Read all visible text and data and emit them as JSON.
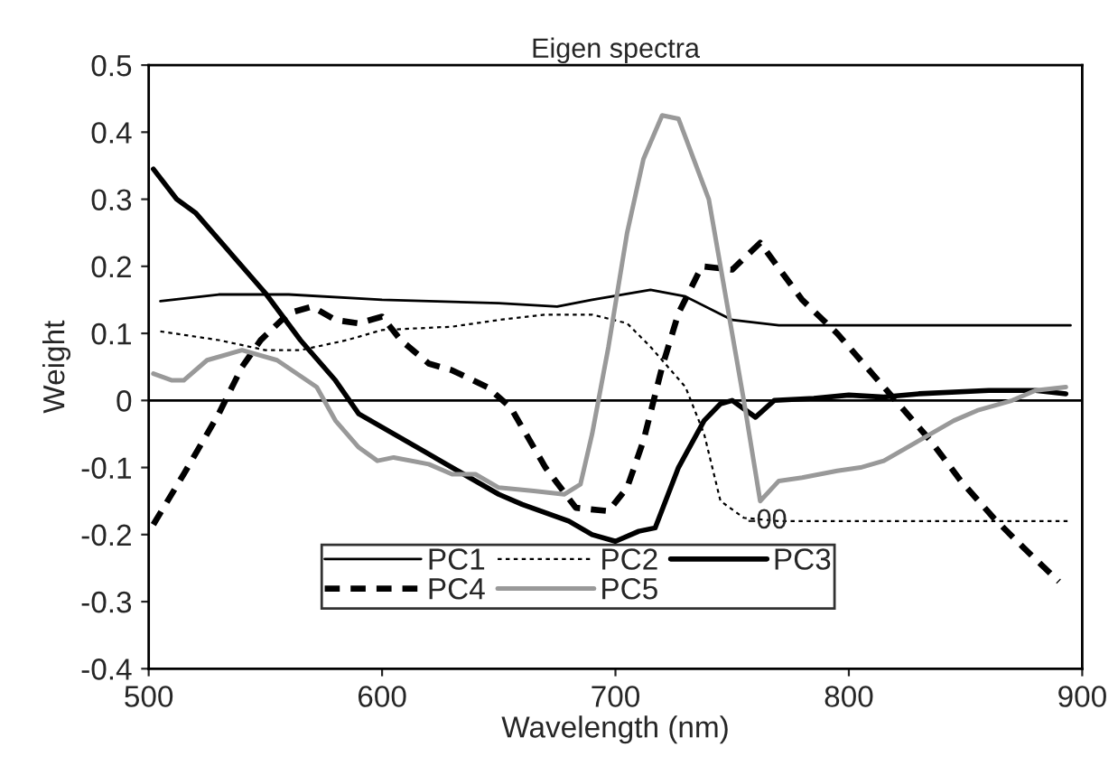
{
  "chart_data": {
    "type": "line",
    "title": "Eigen spectra",
    "xlabel": "Wavelength (nm)",
    "ylabel": "Weight",
    "xlim": [
      500,
      900
    ],
    "xticks": [
      500,
      600,
      700,
      800,
      900
    ],
    "ylim": [
      -0.4,
      0.5
    ],
    "yticks": [
      -0.4,
      -0.3,
      -0.2,
      -0.1,
      0,
      0.1,
      0.2,
      0.3,
      0.4,
      0.5
    ],
    "grid": false,
    "legend": "bottom",
    "marker": "none",
    "ref_lines": [
      {
        "axis": "y",
        "value": 0,
        "color": "#000000",
        "line_style": "solid"
      }
    ],
    "annotations": [
      {
        "text": "-00",
        "x": 765,
        "y": -0.18
      }
    ],
    "series": [
      {
        "name": "PC1",
        "color": "#000000",
        "line_style": "solid",
        "x": [
          505,
          530,
          560,
          600,
          650,
          675,
          690,
          715,
          730,
          750,
          770,
          895
        ],
        "values": [
          0.148,
          0.158,
          0.158,
          0.15,
          0.145,
          0.14,
          0.15,
          0.165,
          0.155,
          0.12,
          0.112,
          0.112
        ]
      },
      {
        "name": "PC2",
        "color": "#000000",
        "line_style": "dotted",
        "x": [
          505,
          530,
          550,
          565,
          585,
          600,
          630,
          650,
          670,
          690,
          705,
          715,
          730,
          738,
          745,
          755,
          770,
          895
        ],
        "values": [
          0.103,
          0.09,
          0.075,
          0.075,
          0.09,
          0.105,
          0.11,
          0.12,
          0.128,
          0.128,
          0.115,
          0.08,
          0.02,
          -0.05,
          -0.15,
          -0.175,
          -0.18,
          -0.18
        ]
      },
      {
        "name": "PC3",
        "color": "#000000",
        "line_style": "solid",
        "x": [
          502,
          512,
          520,
          535,
          550,
          565,
          580,
          590,
          605,
          620,
          635,
          650,
          660,
          680,
          690,
          700,
          710,
          717,
          727,
          738,
          745,
          750,
          760,
          768,
          785,
          800,
          815,
          830,
          860,
          880,
          893
        ],
        "values": [
          0.345,
          0.3,
          0.28,
          0.22,
          0.16,
          0.09,
          0.03,
          -0.02,
          -0.05,
          -0.08,
          -0.11,
          -0.14,
          -0.155,
          -0.18,
          -0.2,
          -0.21,
          -0.195,
          -0.19,
          -0.1,
          -0.03,
          -0.005,
          0.0,
          -0.025,
          0.0,
          0.003,
          0.008,
          0.005,
          0.01,
          0.015,
          0.015,
          0.01
        ]
      },
      {
        "name": "PC4",
        "color": "#000000",
        "line_style": "dashed",
        "x": [
          502,
          515,
          530,
          540,
          548,
          560,
          570,
          580,
          590,
          600,
          608,
          620,
          630,
          645,
          655,
          670,
          683,
          697,
          705,
          712,
          720,
          727,
          737,
          750,
          762,
          780,
          795,
          810,
          820,
          835,
          848,
          862,
          875,
          890
        ],
        "values": [
          -0.185,
          -0.11,
          -0.02,
          0.05,
          0.09,
          0.13,
          0.14,
          0.12,
          0.115,
          0.125,
          0.09,
          0.055,
          0.045,
          0.02,
          -0.01,
          -0.1,
          -0.16,
          -0.165,
          -0.13,
          -0.06,
          0.05,
          0.13,
          0.2,
          0.195,
          0.235,
          0.15,
          0.1,
          0.04,
          0.0,
          -0.06,
          -0.12,
          -0.175,
          -0.22,
          -0.27
        ]
      },
      {
        "name": "PC5",
        "color": "#999999",
        "line_style": "solid",
        "x": [
          502,
          510,
          515,
          525,
          540,
          555,
          572,
          580,
          590,
          598,
          605,
          620,
          630,
          640,
          650,
          665,
          678,
          685,
          690,
          697,
          705,
          712,
          720,
          727,
          740,
          750,
          755,
          762,
          770,
          780,
          795,
          805,
          815,
          830,
          845,
          855,
          870,
          880,
          893
        ],
        "values": [
          0.04,
          0.03,
          0.03,
          0.06,
          0.075,
          0.06,
          0.02,
          -0.03,
          -0.07,
          -0.09,
          -0.085,
          -0.095,
          -0.11,
          -0.11,
          -0.13,
          -0.135,
          -0.14,
          -0.125,
          -0.05,
          0.08,
          0.25,
          0.36,
          0.425,
          0.42,
          0.3,
          0.1,
          0.0,
          -0.15,
          -0.12,
          -0.115,
          -0.105,
          -0.1,
          -0.09,
          -0.06,
          -0.03,
          -0.015,
          0.0,
          0.015,
          0.02
        ]
      }
    ]
  }
}
